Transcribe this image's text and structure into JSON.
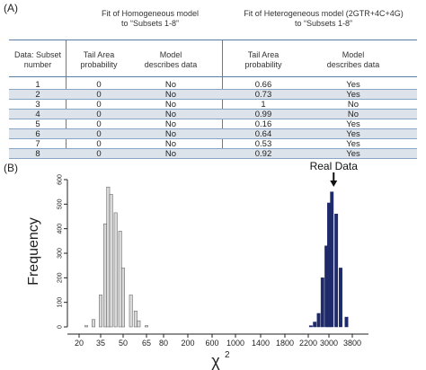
{
  "panel_a": {
    "label": "(A)",
    "header_left": "Fit of Homogeneous model\nto “Subsets 1-8”",
    "header_right": "Fit of Heterogeneous model (2GTR+4C+4G)\nto “Subsets 1-8”",
    "columns": {
      "subset": "Data: Subset\nnumber",
      "tail_left": "Tail Area\nprobability",
      "model_left": "Model\ndescribes data",
      "tail_right": "Tail Area\nprobability",
      "model_right": "Model\ndescribes data"
    },
    "rows": [
      {
        "subset": "1",
        "tail_h": "0",
        "model_h": "No",
        "tail_het": "0.66",
        "model_het": "Yes"
      },
      {
        "subset": "2",
        "tail_h": "0",
        "model_h": "No",
        "tail_het": "0.73",
        "model_het": "Yes"
      },
      {
        "subset": "3",
        "tail_h": "0",
        "model_h": "No",
        "tail_het": "1",
        "model_het": "No"
      },
      {
        "subset": "4",
        "tail_h": "0",
        "model_h": "No",
        "tail_het": "0.99",
        "model_het": "No"
      },
      {
        "subset": "5",
        "tail_h": "0",
        "model_h": "No",
        "tail_het": "0.16",
        "model_het": "Yes"
      },
      {
        "subset": "6",
        "tail_h": "0",
        "model_h": "No",
        "tail_het": "0.64",
        "model_het": "Yes"
      },
      {
        "subset": "7",
        "tail_h": "0",
        "model_h": "No",
        "tail_het": "0.53",
        "model_het": "Yes"
      },
      {
        "subset": "8",
        "tail_h": "0",
        "model_h": "No",
        "tail_het": "0.92",
        "model_het": "Yes"
      }
    ]
  },
  "panel_b": {
    "label": "(B)",
    "annotation": "Real Data"
  },
  "chart_data": {
    "type": "bar",
    "title": "",
    "xlabel": "χ",
    "xlabel_superscript": "2",
    "ylabel": "Frequency",
    "ylim": [
      0,
      600
    ],
    "y_ticks": [
      0,
      100,
      200,
      300,
      400,
      500,
      600
    ],
    "x_ticks": [
      "20",
      "35",
      "50",
      "65",
      "80",
      "200",
      "600",
      "1000",
      "1400",
      "1800",
      "2200",
      "3000",
      "3800"
    ],
    "series": [
      {
        "color": "#d9d9d9",
        "x": [
          25,
          30,
          35,
          38,
          40,
          42,
          45,
          48,
          50,
          55,
          58,
          60,
          65
        ],
        "values": [
          5,
          30,
          130,
          420,
          570,
          540,
          465,
          390,
          240,
          130,
          65,
          25,
          5
        ]
      },
      {
        "color": "#1f2a6b",
        "x": [
          2300,
          2450,
          2600,
          2750,
          2900,
          3000,
          3100,
          3250,
          3400,
          3600
        ],
        "values": [
          5,
          20,
          55,
          200,
          330,
          505,
          550,
          460,
          240,
          40
        ]
      }
    ],
    "real_data_marker": 3100
  }
}
